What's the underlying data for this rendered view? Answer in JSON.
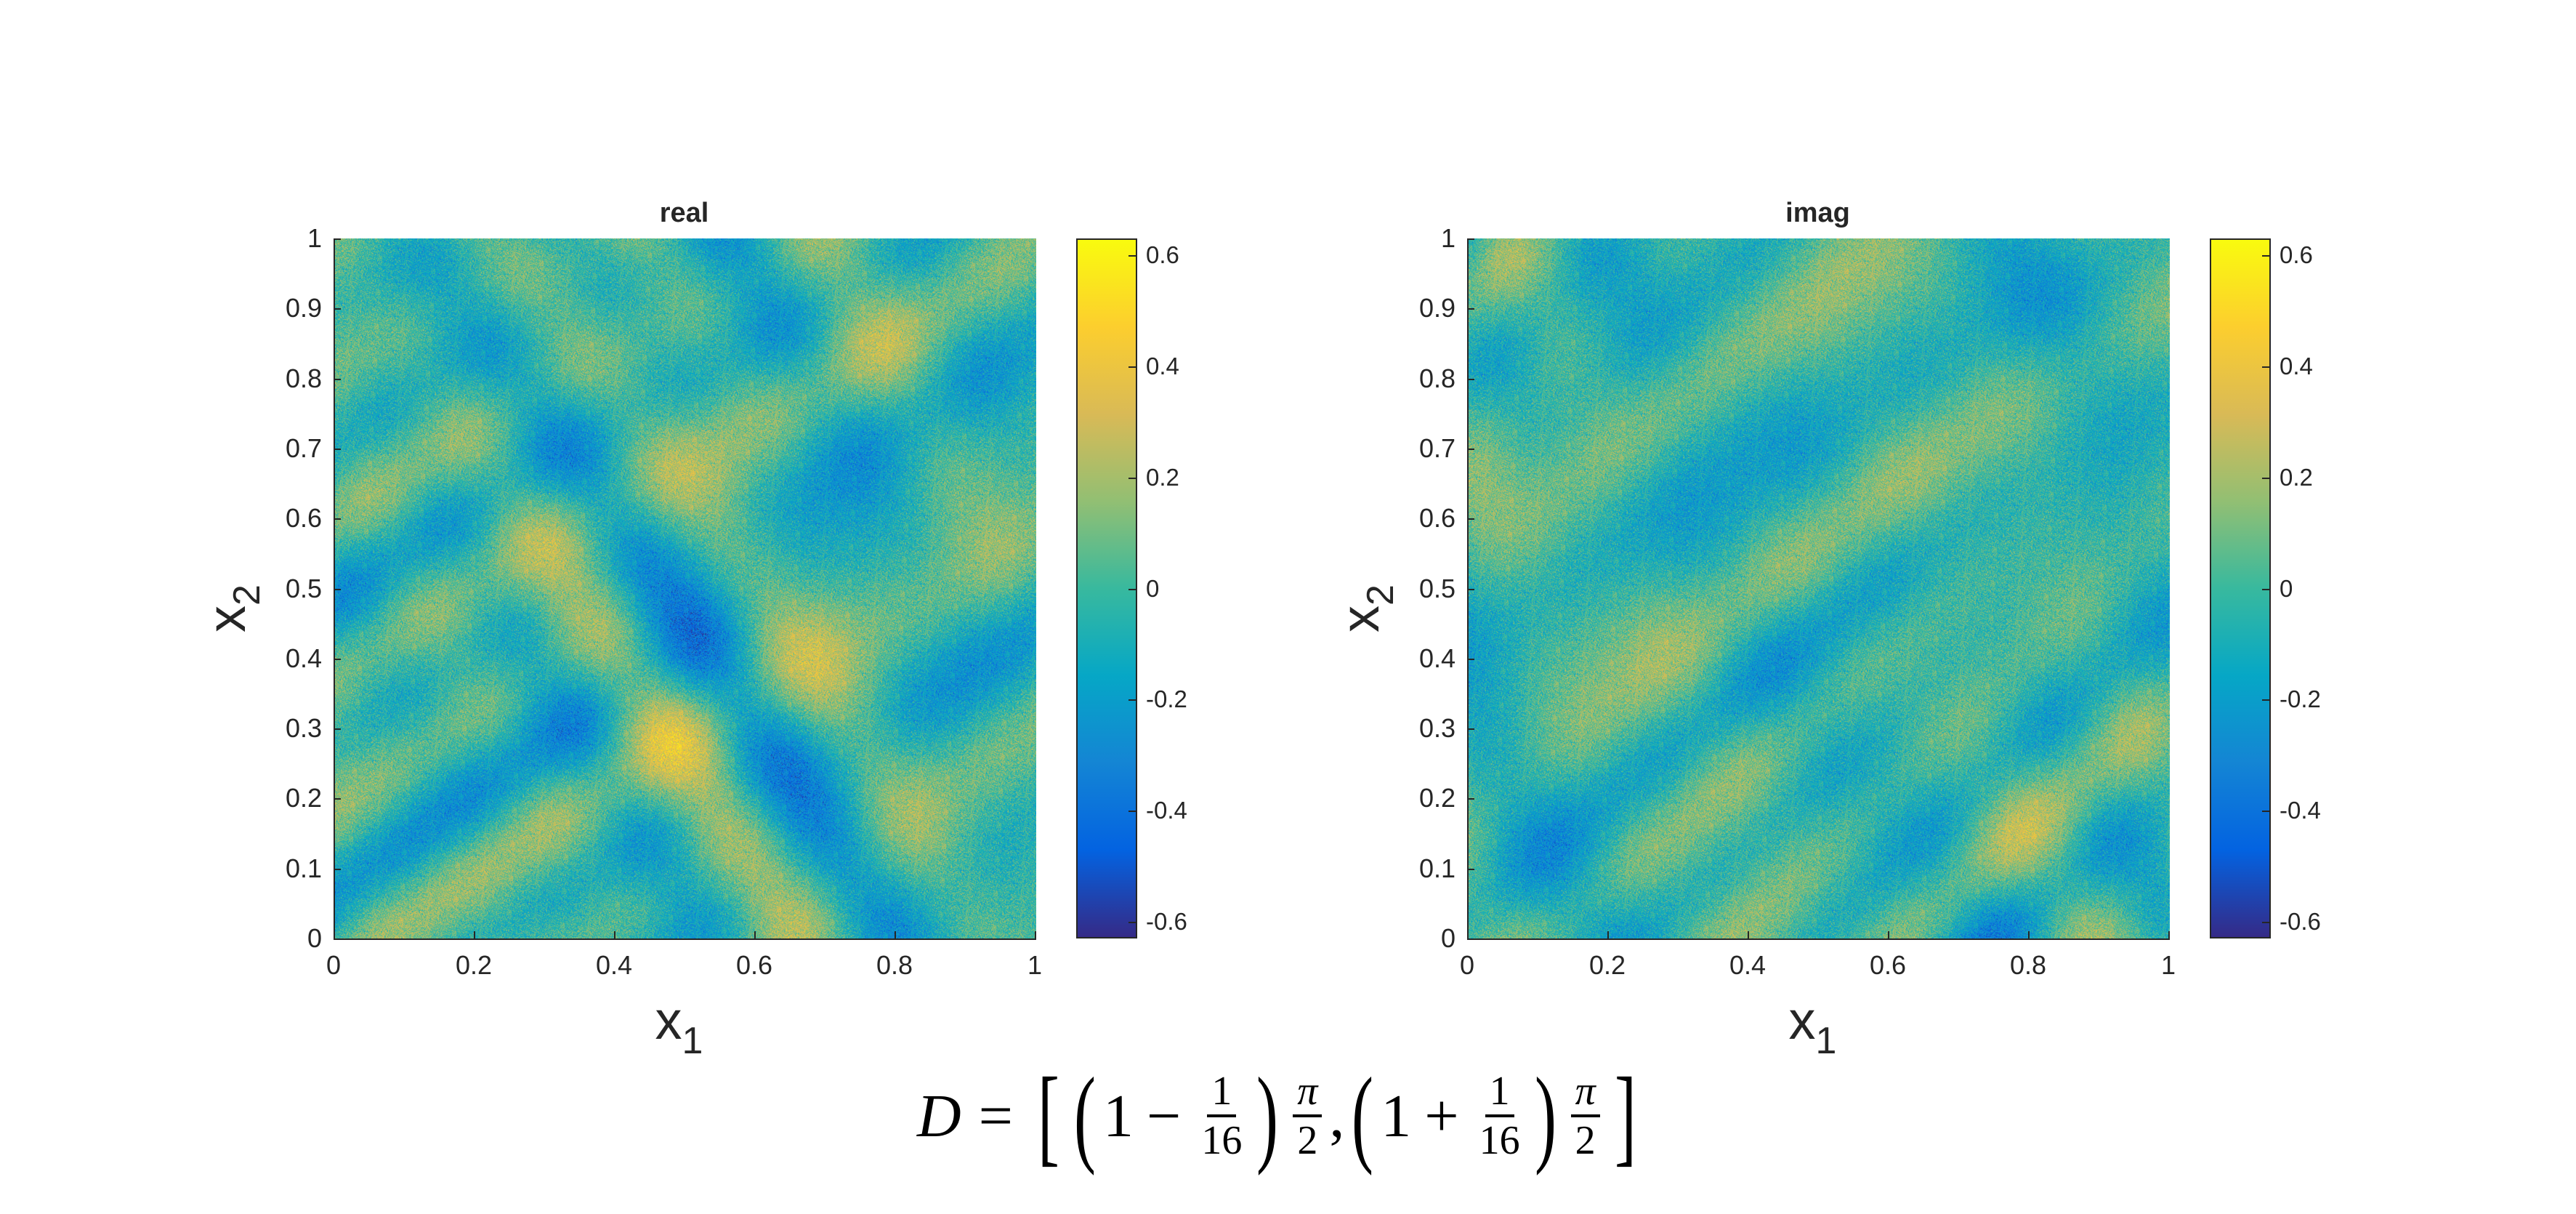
{
  "chart_data": [
    {
      "type": "heatmap",
      "title": "real",
      "xlabel": "x",
      "xlabel_sub": "1",
      "ylabel": "x",
      "ylabel_sub": "2",
      "xlim": [
        0,
        1
      ],
      "ylim": [
        0,
        1
      ],
      "xticks": [
        "0",
        "0.2",
        "0.4",
        "0.6",
        "0.8",
        "1"
      ],
      "yticks": [
        "0",
        "0.1",
        "0.2",
        "0.3",
        "0.4",
        "0.5",
        "0.6",
        "0.7",
        "0.8",
        "0.9",
        "1"
      ],
      "colorbar": {
        "clim": [
          -0.63,
          0.63
        ],
        "ticks": [
          "-0.6",
          "-0.4",
          "-0.2",
          "0",
          "0.2",
          "0.4",
          "0.6"
        ],
        "colormap": "parula"
      },
      "pattern": "noisy diagonal oscillatory field"
    },
    {
      "type": "heatmap",
      "title": "imag",
      "xlabel": "x",
      "xlabel_sub": "1",
      "ylabel": "x",
      "ylabel_sub": "2",
      "xlim": [
        0,
        1
      ],
      "ylim": [
        0,
        1
      ],
      "xticks": [
        "0",
        "0.2",
        "0.4",
        "0.6",
        "0.8",
        "1"
      ],
      "yticks": [
        "0",
        "0.1",
        "0.2",
        "0.3",
        "0.4",
        "0.5",
        "0.6",
        "0.7",
        "0.8",
        "0.9",
        "1"
      ],
      "colorbar": {
        "clim": [
          -0.63,
          0.63
        ],
        "ticks": [
          "-0.6",
          "-0.4",
          "-0.2",
          "0",
          "0.2",
          "0.4",
          "0.6"
        ],
        "colormap": "parula"
      },
      "pattern": "noisy diagonal oscillatory field"
    }
  ],
  "caption": {
    "lhs": "D",
    "eq": "=",
    "lbracket": "[",
    "rbracket": "]",
    "lparen": "(",
    "rparen": ")",
    "one": "1",
    "minus": "−",
    "plus": "+",
    "frac_num": "1",
    "frac_den": "16",
    "pi": "π",
    "two": "2",
    "comma": ","
  }
}
